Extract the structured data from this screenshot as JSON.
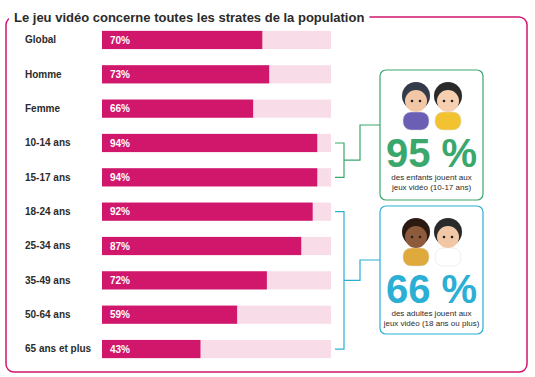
{
  "chart_data": {
    "type": "bar",
    "orientation": "horizontal",
    "title": "Le jeu vidéo concerne toutes les strates de la population",
    "categories": [
      "Global",
      "Homme",
      "Femme",
      "10-14 ans",
      "15-17 ans",
      "18-24 ans",
      "25-34 ans",
      "35-49 ans",
      "50-64 ans",
      "65 ans et plus"
    ],
    "values": [
      70,
      73,
      66,
      94,
      94,
      92,
      87,
      72,
      59,
      43
    ],
    "value_labels": [
      "70%",
      "73%",
      "66%",
      "94%",
      "94%",
      "92%",
      "87%",
      "72%",
      "59%",
      "43%"
    ],
    "color": "#d0176c",
    "xlim": [
      0,
      100
    ],
    "data_labels": true,
    "tick_labels": false,
    "grid": false,
    "annotations": [
      {
        "label": "95 %",
        "text": [
          "des enfants jouent aux",
          "jeux vidéo (10-17 ans)"
        ],
        "categories": [
          "10-14 ans",
          "15-17 ans"
        ]
      },
      {
        "label": "66 %",
        "text": [
          "des adultes jouent aux",
          "jeux vidéo (18 ans ou plus)"
        ],
        "categories": [
          "18-24 ans",
          "25-34 ans",
          "35-49 ans",
          "50-64 ans",
          "65 ans et plus"
        ]
      }
    ]
  }
}
